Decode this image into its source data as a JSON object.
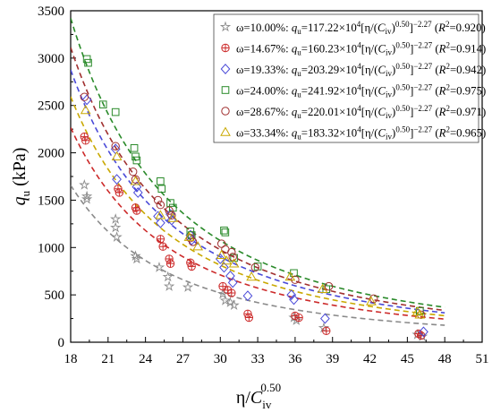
{
  "chart_data": {
    "type": "scatter",
    "title": "",
    "xlabel": "η/C_iv^0.50",
    "ylabel": "q_u (kPa)",
    "xlim": [
      18,
      51
    ],
    "ylim": [
      0,
      3500
    ],
    "xticks": [
      18,
      21,
      24,
      27,
      30,
      33,
      36,
      39,
      42,
      45,
      48,
      51
    ],
    "yticks": [
      0,
      500,
      1000,
      1500,
      2000,
      2500,
      3000,
      3500
    ],
    "grid": false,
    "legend_position": "top-right",
    "fit_exponent": -2.27,
    "fit_x_range": [
      18,
      48
    ],
    "series": [
      {
        "name": "ω=10.00%",
        "equation_coef": "117.22",
        "r2": "0.920",
        "coef": 1172200,
        "color": "#8a8a8a",
        "marker": "star",
        "points": [
          [
            19.1,
            1660
          ],
          [
            19.3,
            1540
          ],
          [
            19.3,
            1510
          ],
          [
            21.6,
            1300
          ],
          [
            21.6,
            1210
          ],
          [
            21.7,
            1110
          ],
          [
            23.2,
            910
          ],
          [
            23.3,
            880
          ],
          [
            25.1,
            790
          ],
          [
            25.8,
            690
          ],
          [
            25.9,
            590
          ],
          [
            27.4,
            580
          ],
          [
            30.2,
            510
          ],
          [
            30.4,
            440
          ],
          [
            30.8,
            420
          ],
          [
            31.1,
            390
          ],
          [
            35.9,
            260
          ],
          [
            36.1,
            230
          ],
          [
            38.3,
            150
          ],
          [
            45.8,
            80
          ],
          [
            46.2,
            60
          ]
        ]
      },
      {
        "name": "ω=14.67%",
        "equation_coef": "160.23",
        "r2": "0.914",
        "coef": 1602300,
        "color": "#cc2a2a",
        "marker": "circle-plus",
        "points": [
          [
            19.1,
            2170
          ],
          [
            19.2,
            2130
          ],
          [
            21.8,
            1620
          ],
          [
            21.9,
            1580
          ],
          [
            23.2,
            1420
          ],
          [
            23.3,
            1390
          ],
          [
            25.2,
            1090
          ],
          [
            25.4,
            1010
          ],
          [
            25.9,
            880
          ],
          [
            26.0,
            830
          ],
          [
            27.6,
            840
          ],
          [
            27.7,
            800
          ],
          [
            30.2,
            590
          ],
          [
            30.6,
            550
          ],
          [
            30.9,
            520
          ],
          [
            32.2,
            300
          ],
          [
            32.3,
            260
          ],
          [
            36.0,
            280
          ],
          [
            36.3,
            260
          ],
          [
            38.5,
            120
          ],
          [
            45.9,
            90
          ],
          [
            46.1,
            70
          ]
        ]
      },
      {
        "name": "ω=19.33%",
        "equation_coef": "203.29",
        "r2": "0.942",
        "coef": 2032900,
        "color": "#4a4ad8",
        "marker": "diamond",
        "points": [
          [
            19.3,
            2560
          ],
          [
            21.6,
            2040
          ],
          [
            21.7,
            1720
          ],
          [
            23.3,
            1640
          ],
          [
            23.4,
            1580
          ],
          [
            25.0,
            1330
          ],
          [
            25.2,
            1260
          ],
          [
            26.0,
            1350
          ],
          [
            26.1,
            1290
          ],
          [
            27.6,
            1130
          ],
          [
            27.7,
            1080
          ],
          [
            30.0,
            880
          ],
          [
            30.3,
            790
          ],
          [
            30.8,
            700
          ],
          [
            31.0,
            630
          ],
          [
            32.2,
            490
          ],
          [
            35.7,
            500
          ],
          [
            35.9,
            450
          ],
          [
            38.4,
            250
          ],
          [
            46.3,
            110
          ]
        ]
      },
      {
        "name": "ω=24.00%",
        "equation_coef": "241.92",
        "r2": "0.975",
        "coef": 2419200,
        "color": "#2a8a2a",
        "marker": "square",
        "points": [
          [
            19.3,
            2990
          ],
          [
            19.4,
            2950
          ],
          [
            20.6,
            2510
          ],
          [
            21.6,
            2430
          ],
          [
            23.1,
            2050
          ],
          [
            23.2,
            1960
          ],
          [
            23.3,
            1920
          ],
          [
            25.2,
            1700
          ],
          [
            25.3,
            1620
          ],
          [
            26.0,
            1470
          ],
          [
            26.2,
            1420
          ],
          [
            27.6,
            1170
          ],
          [
            27.7,
            1130
          ],
          [
            30.3,
            1180
          ],
          [
            30.4,
            1160
          ],
          [
            31.1,
            890
          ],
          [
            33.0,
            800
          ],
          [
            35.9,
            730
          ],
          [
            38.5,
            560
          ],
          [
            46.0,
            330
          ]
        ]
      },
      {
        "name": "ω=28.67%",
        "equation_coef": "220.01",
        "r2": "0.971",
        "coef": 2200100,
        "color": "#a03030",
        "marker": "circle",
        "points": [
          [
            19.1,
            2590
          ],
          [
            21.6,
            2070
          ],
          [
            23.0,
            1800
          ],
          [
            23.2,
            1720
          ],
          [
            25.0,
            1500
          ],
          [
            25.2,
            1450
          ],
          [
            25.9,
            1390
          ],
          [
            26.1,
            1340
          ],
          [
            27.6,
            1100
          ],
          [
            27.8,
            1060
          ],
          [
            30.1,
            1040
          ],
          [
            30.4,
            980
          ],
          [
            30.9,
            950
          ],
          [
            31.0,
            900
          ],
          [
            32.8,
            790
          ],
          [
            36.0,
            660
          ],
          [
            38.7,
            590
          ],
          [
            42.3,
            460
          ],
          [
            46.1,
            290
          ]
        ]
      },
      {
        "name": "ω=33.34%",
        "equation_coef": "183.32",
        "r2": "0.965",
        "coef": 1833200,
        "color": "#c9a800",
        "marker": "triangle",
        "points": [
          [
            19.2,
            2450
          ],
          [
            21.7,
            1960
          ],
          [
            23.2,
            1700
          ],
          [
            25.2,
            1340
          ],
          [
            26.2,
            1310
          ],
          [
            27.5,
            1110
          ],
          [
            28.2,
            1010
          ],
          [
            30.1,
            920
          ],
          [
            30.5,
            860
          ],
          [
            31.1,
            830
          ],
          [
            32.5,
            690
          ],
          [
            35.6,
            690
          ],
          [
            38.2,
            560
          ],
          [
            42.1,
            430
          ],
          [
            45.8,
            320
          ],
          [
            46.0,
            290
          ]
        ]
      }
    ]
  }
}
